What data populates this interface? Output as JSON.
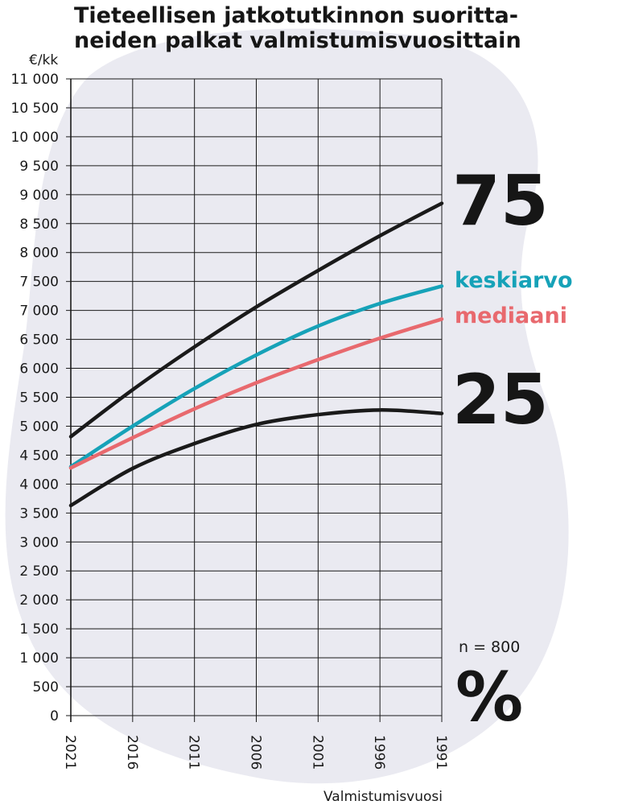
{
  "chart_data": {
    "type": "line",
    "title": "Tieteellisen jatkotutkinnon suoritta-\nneiden palkat valmistumisvuosittain",
    "ylabel": "€/kk",
    "xlabel": "Valmistumisvuosi",
    "x": [
      2021,
      2016,
      2011,
      2006,
      2001,
      1996,
      1991
    ],
    "ylim": [
      0,
      11000
    ],
    "yticks": [
      0,
      500,
      1000,
      1500,
      2000,
      2500,
      3000,
      3500,
      4000,
      4500,
      5000,
      5500,
      6000,
      6500,
      7000,
      7500,
      8000,
      8500,
      9000,
      9500,
      10000,
      10500,
      11000
    ],
    "ytick_labels": [
      "0",
      "500",
      "1 000",
      "1 500",
      "2 000",
      "2 500",
      "3 000",
      "3 500",
      "4 000",
      "4 500",
      "5 000",
      "5 500",
      "6 000",
      "6 500",
      "7 000",
      "7 500",
      "8 000",
      "8 500",
      "9 000",
      "9 500",
      "10 000",
      "10 500",
      "11 000"
    ],
    "xtick_labels": [
      "2021",
      "2016",
      "2011",
      "2006",
      "2001",
      "1996",
      "1991"
    ],
    "grid": true,
    "series": [
      {
        "name": "75",
        "color": "#1a1a1a",
        "values": [
          4820,
          5630,
          6370,
          7060,
          7690,
          8290,
          8850
        ]
      },
      {
        "name": "keskiarvo",
        "color": "#16a2b8",
        "values": [
          4300,
          5000,
          5650,
          6230,
          6730,
          7120,
          7420
        ]
      },
      {
        "name": "mediaani",
        "color": "#e8696e",
        "values": [
          4280,
          4800,
          5300,
          5750,
          6150,
          6520,
          6850
        ]
      },
      {
        "name": "25",
        "color": "#1a1a1a",
        "values": [
          3630,
          4270,
          4700,
          5030,
          5200,
          5280,
          5220
        ]
      }
    ],
    "legend_labels": [
      {
        "text": "75",
        "color": "#161616",
        "size": "large"
      },
      {
        "text": "keskiarvo",
        "color": "#16a2b8",
        "size": "medium"
      },
      {
        "text": "mediaani",
        "color": "#e8696e",
        "size": "medium"
      },
      {
        "text": "25",
        "color": "#161616",
        "size": "large"
      }
    ],
    "annotations": [
      "n = 800",
      "%"
    ],
    "legend_placement": "right",
    "background_shape_color": "#eaeaf1"
  }
}
